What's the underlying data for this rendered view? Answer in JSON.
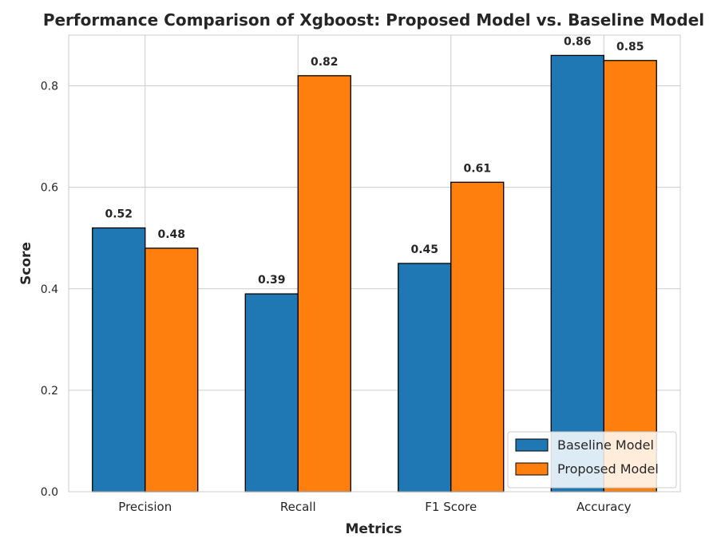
{
  "chart_data": {
    "type": "bar",
    "title": "Performance Comparison of Xgboost: Proposed Model vs. Baseline Model",
    "xlabel": "Metrics",
    "ylabel": "Score",
    "categories": [
      "Precision",
      "Recall",
      "F1 Score",
      "Accuracy"
    ],
    "series": [
      {
        "name": "Baseline Model",
        "values": [
          0.52,
          0.39,
          0.45,
          0.86
        ],
        "labels": [
          "0.52",
          "0.39",
          "0.45",
          "0.86"
        ],
        "color": "#1f77b4"
      },
      {
        "name": "Proposed Model",
        "values": [
          0.48,
          0.82,
          0.61,
          0.85
        ],
        "labels": [
          "0.48",
          "0.82",
          "0.61",
          "0.85"
        ],
        "color": "#ff7f0e"
      }
    ],
    "ylim": [
      0,
      0.9
    ],
    "yticks": [
      0.0,
      0.2,
      0.4,
      0.6,
      0.8
    ],
    "ytick_labels": [
      "0.0",
      "0.2",
      "0.4",
      "0.6",
      "0.8"
    ],
    "grid": true,
    "legend_position": "bottom-right"
  }
}
